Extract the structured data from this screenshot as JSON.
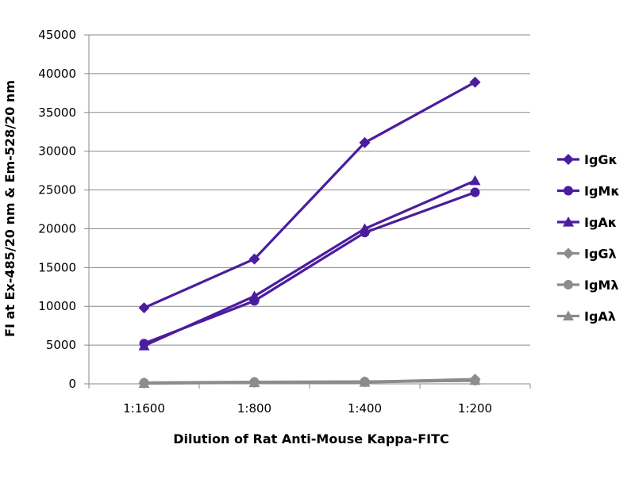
{
  "chart_data": {
    "type": "line",
    "title": "",
    "xlabel": "Dilution of Rat Anti-Mouse Kappa-FITC",
    "ylabel": "FI at Ex-485/20 nm & Em-528/20 nm",
    "categories": [
      "1:1600",
      "1:800",
      "1:400",
      "1:200"
    ],
    "ylim": [
      0,
      45000
    ],
    "yticks": [
      0,
      5000,
      10000,
      15000,
      20000,
      25000,
      30000,
      35000,
      40000,
      45000
    ],
    "grid": true,
    "legend_position": "right",
    "series": [
      {
        "name": "IgGκ",
        "marker": "diamond",
        "color": "#4b1d9e",
        "values": [
          9800,
          16100,
          31100,
          38900
        ]
      },
      {
        "name": "IgMκ",
        "marker": "circle",
        "color": "#4b1d9e",
        "values": [
          5200,
          10700,
          19500,
          24700
        ]
      },
      {
        "name": "IgAκ",
        "marker": "triangle",
        "color": "#4b1d9e",
        "values": [
          4900,
          11300,
          20000,
          26200
        ]
      },
      {
        "name": "IgGλ",
        "marker": "diamond",
        "color": "#8c8c8c",
        "values": [
          100,
          200,
          250,
          600
        ]
      },
      {
        "name": "IgMλ",
        "marker": "circle",
        "color": "#8c8c8c",
        "values": [
          150,
          250,
          300,
          400
        ]
      },
      {
        "name": "IgAλ",
        "marker": "triangle",
        "color": "#8c8c8c",
        "values": [
          50,
          150,
          200,
          450
        ]
      }
    ]
  }
}
